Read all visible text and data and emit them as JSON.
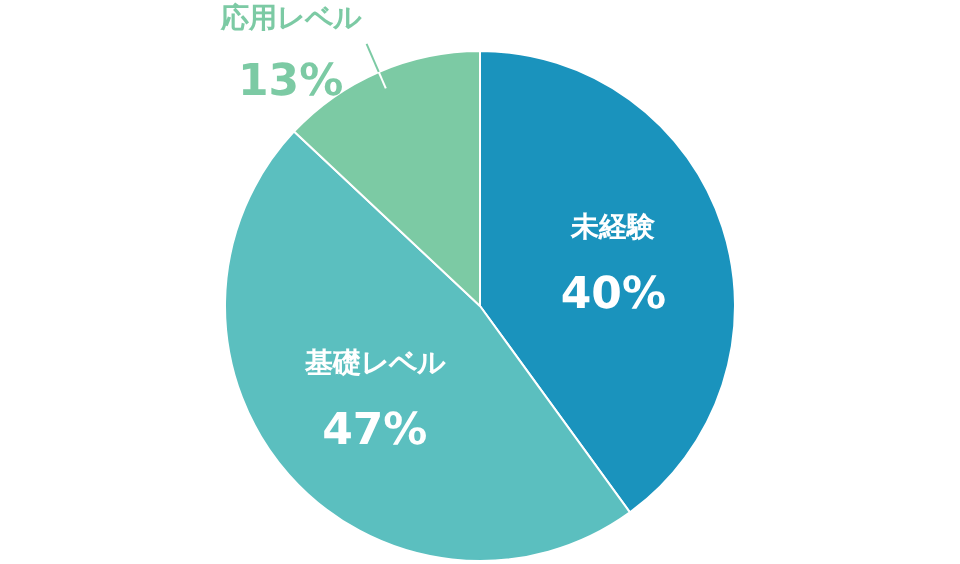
{
  "chart_data": {
    "type": "pie",
    "categories": [
      "未経験",
      "基礎レベル",
      "応用レベル"
    ],
    "values": [
      40,
      47,
      13
    ],
    "colors": [
      "#1a93bd",
      "#5bbfbf",
      "#7ccaa4"
    ],
    "value_labels": [
      "40%",
      "47%",
      "13%"
    ]
  }
}
